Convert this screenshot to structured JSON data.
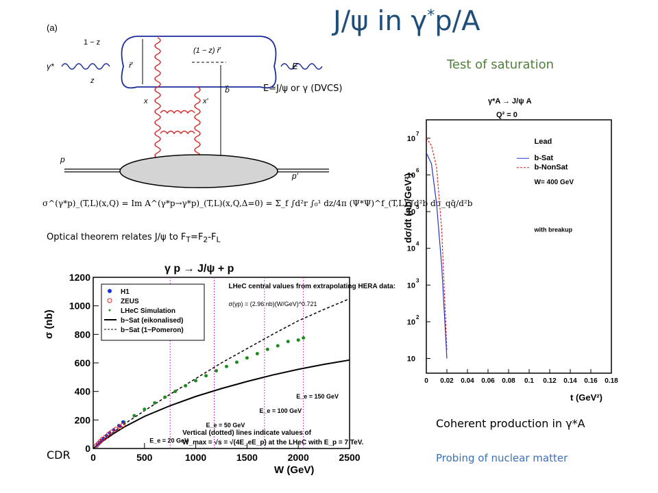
{
  "slide": {
    "title_main": "J/ψ in γ",
    "title_sup": "*",
    "title_tail": "p/A",
    "test_of_saturation": "Test of saturation",
    "e_label": "E=J/ψ or γ (DVCS)",
    "optical_theorem_pre": "Optical theorem relates J/ψ to F",
    "optical_T": "T",
    "optical_eq": "=F",
    "optical_2": "2",
    "optical_dash": "-F",
    "optical_L": "L",
    "coherent": "Coherent production in γ*A",
    "probing": "Probing of nuclear matter",
    "cdr": "CDR"
  },
  "diagram": {
    "panel_label": "(a)",
    "one_minus_z": "1 − z",
    "z": "z",
    "r_vec": "r⃗",
    "one_minus_z_r": "(1 − z) r⃗",
    "gamma_star": "γ*",
    "E": "E",
    "x": "x",
    "x_prime": "x′",
    "b_vec": "b⃗",
    "p": "p",
    "p_prime": "p′",
    "formula": "σ^(γ*p)_(T,L)(x,Q) = Im A^(γ*p→γ*p)_(T,L)(x,Q,Δ=0) = Σ_f ∫d²r ∫₀¹ dz/4π (Ψ*Ψ)^f_(T,L) ∫d²b dσ_qq̄/d²b"
  },
  "chart_data": [
    {
      "type": "line",
      "title": "γ p → J/ψ + p",
      "xlabel": "W  (GeV)",
      "ylabel": "σ  (nb)",
      "xlim": [
        0,
        2500
      ],
      "ylim": [
        0,
        1200
      ],
      "xticks": [
        "0",
        "500",
        "1000",
        "1500",
        "2000",
        "2500"
      ],
      "yticks": [
        "0",
        "200",
        "400",
        "600",
        "800",
        "1000",
        "1200"
      ],
      "legend": [
        "H1",
        "ZEUS",
        "LHeC Simulation",
        "b−Sat (eikonalised)",
        "b−Sat (1−Pomeron)"
      ],
      "legend_placement": "top-left",
      "annotation_header": "LHeC central values from extrapolating HERA data:",
      "annotation_formula": "σ(γp) = (2.96 nb)(W/GeV)^0.721",
      "vertical_note_1": "Vertical (dotted) lines indicate values of",
      "vertical_note_2": "W_max = √s = √(4E_eE_p) at the LHeC with E_p = 7 TeV.",
      "ee_labels": [
        "E_e = 20 GeV",
        "E_e = 50 GeV",
        "E_e = 100 GeV",
        "E_e = 150 GeV"
      ],
      "vlines": [
        750,
        1180,
        1670,
        2050
      ],
      "colors": {
        "h1": "#1530d8",
        "zeus": "#e02020",
        "lhec": "#1f8a1f",
        "vline": "#cc33cc"
      },
      "series": [
        {
          "name": "b−Sat (eikonalised)",
          "style": "solid",
          "x": [
            0,
            100,
            200,
            300,
            500,
            750,
            1000,
            1250,
            1500,
            1750,
            2000,
            2250,
            2500
          ],
          "y": [
            0,
            55,
            105,
            150,
            225,
            300,
            365,
            420,
            470,
            515,
            555,
            590,
            620
          ]
        },
        {
          "name": "b−Sat (1−Pomeron)",
          "style": "dashed",
          "x": [
            0,
            100,
            200,
            300,
            500,
            750,
            1000,
            1250,
            1500,
            1750,
            2000,
            2250,
            2500
          ],
          "y": [
            0,
            60,
            115,
            170,
            265,
            380,
            490,
            600,
            700,
            800,
            895,
            975,
            1050
          ]
        },
        {
          "name": "LHeC Simulation",
          "style": "points",
          "x": [
            300,
            400,
            500,
            600,
            700,
            800,
            900,
            1000,
            1100,
            1200,
            1300,
            1400,
            1500,
            1600,
            1700,
            1800,
            1900,
            2000,
            2050
          ],
          "y": [
            185,
            230,
            275,
            320,
            360,
            400,
            440,
            475,
            510,
            545,
            575,
            605,
            635,
            665,
            695,
            720,
            750,
            760,
            775
          ]
        },
        {
          "name": "H1",
          "style": "points",
          "x": [
            40,
            60,
            80,
            100,
            130,
            160,
            200,
            250,
            290
          ],
          "y": [
            25,
            40,
            55,
            70,
            90,
            110,
            130,
            160,
            185
          ]
        },
        {
          "name": "ZEUS",
          "style": "open",
          "x": [
            30,
            50,
            70,
            90,
            120,
            150,
            180,
            220,
            260,
            290
          ],
          "y": [
            20,
            35,
            50,
            65,
            80,
            100,
            115,
            135,
            150,
            165
          ]
        }
      ]
    },
    {
      "type": "line",
      "title": "γ*A → J/ψ A",
      "subtitle": "Q² = 0",
      "xlabel": "t  (GeV²)",
      "ylabel": "dσ/dt  (nb/GeV²)",
      "log_y": true,
      "xlim": [
        0,
        0.18
      ],
      "ylim_log10": [
        0.6,
        7.5
      ],
      "xticks": [
        "0",
        "0.02",
        "0.04",
        "0.06",
        "0.08",
        "0.1",
        "0.12",
        "0.14",
        "0.16",
        "0.18"
      ],
      "yticks": [
        "10",
        "10",
        "10",
        "10",
        "10",
        "10",
        "10"
      ],
      "ytick_exps": [
        "",
        "2",
        "3",
        "4",
        "5",
        "6",
        "7"
      ],
      "legend_header": "Lead",
      "legend": [
        "b-Sat",
        "b-NonSat"
      ],
      "legend_placement": "top-right",
      "w_label": "W= 400 GeV",
      "breakup_label": "with breakup",
      "colors": {
        "bsat": "#2233cc",
        "bnonsat": "#e02020",
        "points": "#000000"
      },
      "series": [
        {
          "name": "b-Sat",
          "style": "solid",
          "x": [
            0,
            0.005,
            0.01,
            0.015,
            0.02
          ],
          "log10y": [
            6.6,
            6.3,
            5.2,
            3.5,
            1.0
          ]
        },
        {
          "name": "b-NonSat",
          "style": "dashed",
          "x": [
            0,
            0.005,
            0.01,
            0.015,
            0.02
          ],
          "log10y": [
            7.0,
            6.8,
            6.2,
            4.5,
            1.2
          ]
        }
      ]
    }
  ]
}
